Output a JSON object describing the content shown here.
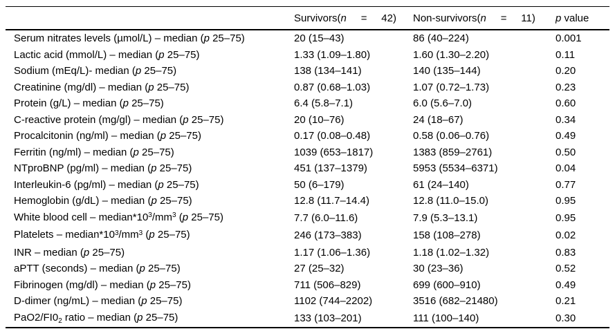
{
  "table": {
    "header": {
      "parameter": "",
      "survivors": [
        {
          "t": "Survivors("
        },
        {
          "t": "n",
          "s": "italic"
        },
        {
          "t": "     =     42)"
        }
      ],
      "nonsurvivors": [
        {
          "t": "Non-survivors("
        },
        {
          "t": "n",
          "s": "italic"
        },
        {
          "t": "     =     11)"
        }
      ],
      "pvalue": [
        {
          "t": "p",
          "s": "italic"
        },
        {
          "t": " value"
        }
      ]
    },
    "rows": [
      {
        "label": [
          {
            "t": "Serum nitrates levels (µmol/L) – median ("
          },
          {
            "t": "p",
            "s": "italic"
          },
          {
            "t": " 25–75)"
          }
        ],
        "survivors": "20 (15–43)",
        "nonsurvivors": "86 (40–224)",
        "p": "0.001"
      },
      {
        "label": [
          {
            "t": "Lactic acid (mmol/L) – median ("
          },
          {
            "t": "p",
            "s": "italic"
          },
          {
            "t": " 25–75)"
          }
        ],
        "survivors": "1.33 (1.09–1.80)",
        "nonsurvivors": "1.60 (1.30–2.20)",
        "p": "0.11"
      },
      {
        "label": [
          {
            "t": "Sodium (mEq/L)- median ("
          },
          {
            "t": "p",
            "s": "italic"
          },
          {
            "t": " 25–75)"
          }
        ],
        "survivors": "138 (134–141)",
        "nonsurvivors": "140 (135–144)",
        "p": "0.20"
      },
      {
        "label": [
          {
            "t": "Creatinine (mg/dl) – median ("
          },
          {
            "t": "p",
            "s": "italic"
          },
          {
            "t": " 25–75)"
          }
        ],
        "survivors": "0.87 (0.68–1.03)",
        "nonsurvivors": "1.07 (0.72–1.73)",
        "p": "0.23"
      },
      {
        "label": [
          {
            "t": "Protein (g/L) – median ("
          },
          {
            "t": "p",
            "s": "italic"
          },
          {
            "t": " 25–75)"
          }
        ],
        "survivors": "6.4 (5.8–7.1)",
        "nonsurvivors": "6.0 (5.6–7.0)",
        "p": "0.60"
      },
      {
        "label": [
          {
            "t": "C-reactive protein (mg/gl) – median ("
          },
          {
            "t": "p",
            "s": "italic"
          },
          {
            "t": " 25–75)"
          }
        ],
        "survivors": "20 (10–76)",
        "nonsurvivors": "24 (18–67)",
        "p": "0.34"
      },
      {
        "label": [
          {
            "t": "Procalcitonin (ng/ml) – median ("
          },
          {
            "t": "p",
            "s": "italic"
          },
          {
            "t": " 25–75)"
          }
        ],
        "survivors": "0.17 (0.08–0.48)",
        "nonsurvivors": "0.58 (0.06–0.76)",
        "p": "0.49"
      },
      {
        "label": [
          {
            "t": "Ferritin (ng/ml) – median ("
          },
          {
            "t": "p",
            "s": "italic"
          },
          {
            "t": " 25–75)"
          }
        ],
        "survivors": "1039 (653–1817)",
        "nonsurvivors": "1383 (859–2761)",
        "p": "0.50"
      },
      {
        "label": [
          {
            "t": "NTproBNP (pg/ml) – median ("
          },
          {
            "t": "p",
            "s": "italic"
          },
          {
            "t": " 25–75)"
          }
        ],
        "survivors": "451 (137–1379)",
        "nonsurvivors": "5953 (5534–6371)",
        "p": "0.04"
      },
      {
        "label": [
          {
            "t": "Interleukin-6 (pg/ml) – median ("
          },
          {
            "t": "p",
            "s": "italic"
          },
          {
            "t": " 25–75)"
          }
        ],
        "survivors": "50 (6–179)",
        "nonsurvivors": "61 (24–140)",
        "p": "0.77"
      },
      {
        "label": [
          {
            "t": "Hemoglobin (g/dL) – median ("
          },
          {
            "t": "p",
            "s": "italic"
          },
          {
            "t": " 25–75)"
          }
        ],
        "survivors": "12.8 (11.7–14.4)",
        "nonsurvivors": "12.8 (11.0–15.0)",
        "p": "0.95"
      },
      {
        "label": [
          {
            "t": "White blood cell – median*10"
          },
          {
            "t": "3",
            "s": "sup"
          },
          {
            "t": "/mm"
          },
          {
            "t": "3",
            "s": "sup"
          },
          {
            "t": " ("
          },
          {
            "t": "p",
            "s": "italic"
          },
          {
            "t": " 25–75)"
          }
        ],
        "survivors": "7.7 (6.0–11.6)",
        "nonsurvivors": "7.9 (5.3–13.1)",
        "p": "0.95"
      },
      {
        "label": [
          {
            "t": "Platelets – median*10"
          },
          {
            "t": "3",
            "s": "sup"
          },
          {
            "t": "/mm"
          },
          {
            "t": "3",
            "s": "sup"
          },
          {
            "t": " ("
          },
          {
            "t": "p",
            "s": "italic"
          },
          {
            "t": " 25–75)"
          }
        ],
        "survivors": "246 (173–383)",
        "nonsurvivors": "158 (108–278)",
        "p": "0.02"
      },
      {
        "label": [
          {
            "t": "INR – median ("
          },
          {
            "t": "p",
            "s": "italic"
          },
          {
            "t": " 25–75)"
          }
        ],
        "survivors": "1.17 (1.06–1.36)",
        "nonsurvivors": "1.18 (1.02–1.32)",
        "p": "0.83"
      },
      {
        "label": [
          {
            "t": "aPTT (seconds) – median ("
          },
          {
            "t": "p",
            "s": "italic"
          },
          {
            "t": " 25–75)"
          }
        ],
        "survivors": "27 (25–32)",
        "nonsurvivors": "30 (23–36)",
        "p": "0.52"
      },
      {
        "label": [
          {
            "t": "Fibrinogen (mg/dl) – median ("
          },
          {
            "t": "p",
            "s": "italic"
          },
          {
            "t": " 25–75)"
          }
        ],
        "survivors": "711 (506–829)",
        "nonsurvivors": "699 (600–910)",
        "p": "0.49"
      },
      {
        "label": [
          {
            "t": "D-dimer (ng/mL) – median ("
          },
          {
            "t": "p",
            "s": "italic"
          },
          {
            "t": " 25–75)"
          }
        ],
        "survivors": "1102 (744–2202)",
        "nonsurvivors": "3516 (682–21480)",
        "p": "0.21"
      },
      {
        "label": [
          {
            "t": "PaO2/FI0"
          },
          {
            "t": "2",
            "s": "sub"
          },
          {
            "t": " ratio – median ("
          },
          {
            "t": "p",
            "s": "italic"
          },
          {
            "t": " 25–75)"
          }
        ],
        "survivors": "133 (103–201)",
        "nonsurvivors": "111 (100–140)",
        "p": "0.30"
      }
    ]
  }
}
